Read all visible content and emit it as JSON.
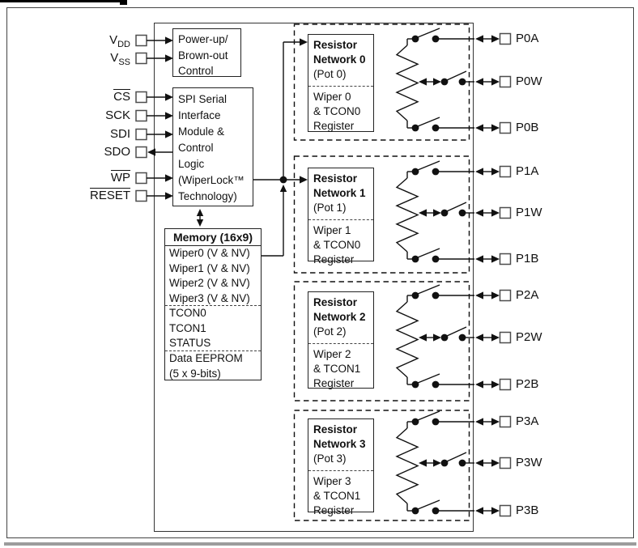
{
  "chip": {
    "left_pins": [
      {
        "id": "vdd",
        "text": "V",
        "sub": "DD",
        "overline": false,
        "dir": "in"
      },
      {
        "id": "vss",
        "text": "V",
        "sub": "SS",
        "overline": false,
        "dir": "in"
      },
      {
        "id": "cs",
        "text": "CS",
        "sub": "",
        "overline": true,
        "dir": "in"
      },
      {
        "id": "sck",
        "text": "SCK",
        "sub": "",
        "overline": false,
        "dir": "in"
      },
      {
        "id": "sdi",
        "text": "SDI",
        "sub": "",
        "overline": false,
        "dir": "in"
      },
      {
        "id": "sdo",
        "text": "SDO",
        "sub": "",
        "overline": false,
        "dir": "out"
      },
      {
        "id": "wp",
        "text": "WP",
        "sub": "",
        "overline": true,
        "dir": "in"
      },
      {
        "id": "reset",
        "text": "RESET",
        "sub": "",
        "overline": true,
        "dir": "in"
      }
    ],
    "blocks": {
      "powerup": {
        "text": "Power-up/\nBrown-out\nControl"
      },
      "spi": {
        "text": "SPI Serial\nInterface\nModule &\nControl\nLogic\n(WiperLock™\nTechnology)"
      },
      "memory": {
        "title": "Memory (16x9)",
        "groups": [
          "Wiper0 (V & NV)\nWiper1 (V & NV)\nWiper2 (V & NV)\nWiper3 (V & NV)",
          "TCON0\nTCON1\nSTATUS",
          "Data EEPROM\n(5 x 9-bits)"
        ]
      }
    },
    "networks": [
      {
        "title": "Resistor\nNetwork 0",
        "pot": "(Pot 0)",
        "register": "Wiper 0\n& TCON0\nRegister",
        "pins": [
          "P0A",
          "P0W",
          "P0B"
        ]
      },
      {
        "title": "Resistor\nNetwork 1",
        "pot": "(Pot 1)",
        "register": "Wiper 1\n& TCON0\nRegister",
        "pins": [
          "P1A",
          "P1W",
          "P1B"
        ]
      },
      {
        "title": "Resistor\nNetwork 2",
        "pot": "(Pot 2)",
        "register": "Wiper 2\n& TCON1\nRegister",
        "pins": [
          "P2A",
          "P2W",
          "P2B"
        ]
      },
      {
        "title": "Resistor\nNetwork 3",
        "pot": "(Pot 3)",
        "register": "Wiper 3\n& TCON1\nRegister",
        "pins": [
          "P3A",
          "P3W",
          "P3B"
        ]
      }
    ]
  },
  "colors": {
    "line": "#111111",
    "box_border": "#222222",
    "pin_square": "#4d4d4d",
    "page_rule": "#9c9c9c"
  }
}
